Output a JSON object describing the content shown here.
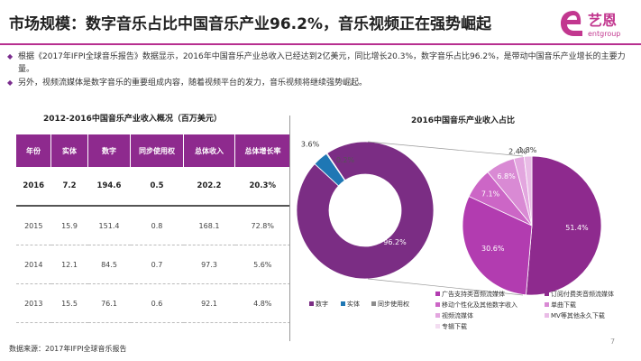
{
  "title": "市场规模：数字音乐占比中国音乐产业96.2%，音乐视频正在强势崛起",
  "logo": {
    "cn": "艺恩",
    "en": "entgroup"
  },
  "bullets": [
    "根据《2017年IFPI全球音乐报告》数据显示，2016年中国音乐产业总收入已经达到2亿美元，同比增长20.3%，数字音乐占比96.2%，是带动中国音乐产业增长的主要力量。",
    "另外，视频流媒体是数字音乐的重要组成内容，随着视频平台的发力，音乐视频将继续强势崛起。"
  ],
  "table": {
    "title": "2012-2016中国音乐产业收入概况（百万美元）",
    "headers": [
      "年份",
      "实体",
      "数字",
      "同步使用权",
      "总体收入",
      "总体增长率"
    ],
    "rows": [
      [
        "2016",
        "7.2",
        "194.6",
        "0.5",
        "202.2",
        "20.3%"
      ],
      [
        "2015",
        "15.9",
        "151.4",
        "0.8",
        "168.1",
        "72.8%"
      ],
      [
        "2014",
        "12.1",
        "84.5",
        "0.7",
        "97.3",
        "5.6%"
      ],
      [
        "2013",
        "15.5",
        "76.1",
        "0.6",
        "92.1",
        "4.8%"
      ]
    ]
  },
  "chart_data": [
    {
      "type": "pie",
      "variant": "donut",
      "title": "2016中国音乐产业收入占比",
      "labels": [
        "数字",
        "实体",
        "同步使用权"
      ],
      "values": [
        96.2,
        3.6,
        0.2
      ],
      "display_labels": [
        "96.2%",
        "3.6%",
        "0.2%"
      ],
      "colors": [
        "#7b2d84",
        "#1f77b4",
        "#8c8c8c"
      ],
      "legend_position": "bottom"
    },
    {
      "type": "pie",
      "labels": [
        "广告支持类音频流媒体",
        "订阅付费类音频流媒体",
        "移动个性化及其他数字收入",
        "单曲下载",
        "视频流媒体",
        "MV等其他永久下载",
        "专辑下载"
      ],
      "values": [
        30.6,
        51.4,
        7.1,
        6.8,
        2.4,
        1.8,
        0.0
      ],
      "display_labels": [
        "30.6%",
        "51.4%",
        "7.1%",
        "6.8%",
        "2.4%",
        "1.8%"
      ],
      "colors": [
        "#b23cb0",
        "#8e2a8e",
        "#cc66c6",
        "#d98ad4",
        "#e3a6df",
        "#e9bce6",
        "#f3ddf1"
      ],
      "legend_position": "bottom"
    }
  ],
  "source": "数据来源：2017年IFPI全球音乐报告",
  "page_number": "7"
}
